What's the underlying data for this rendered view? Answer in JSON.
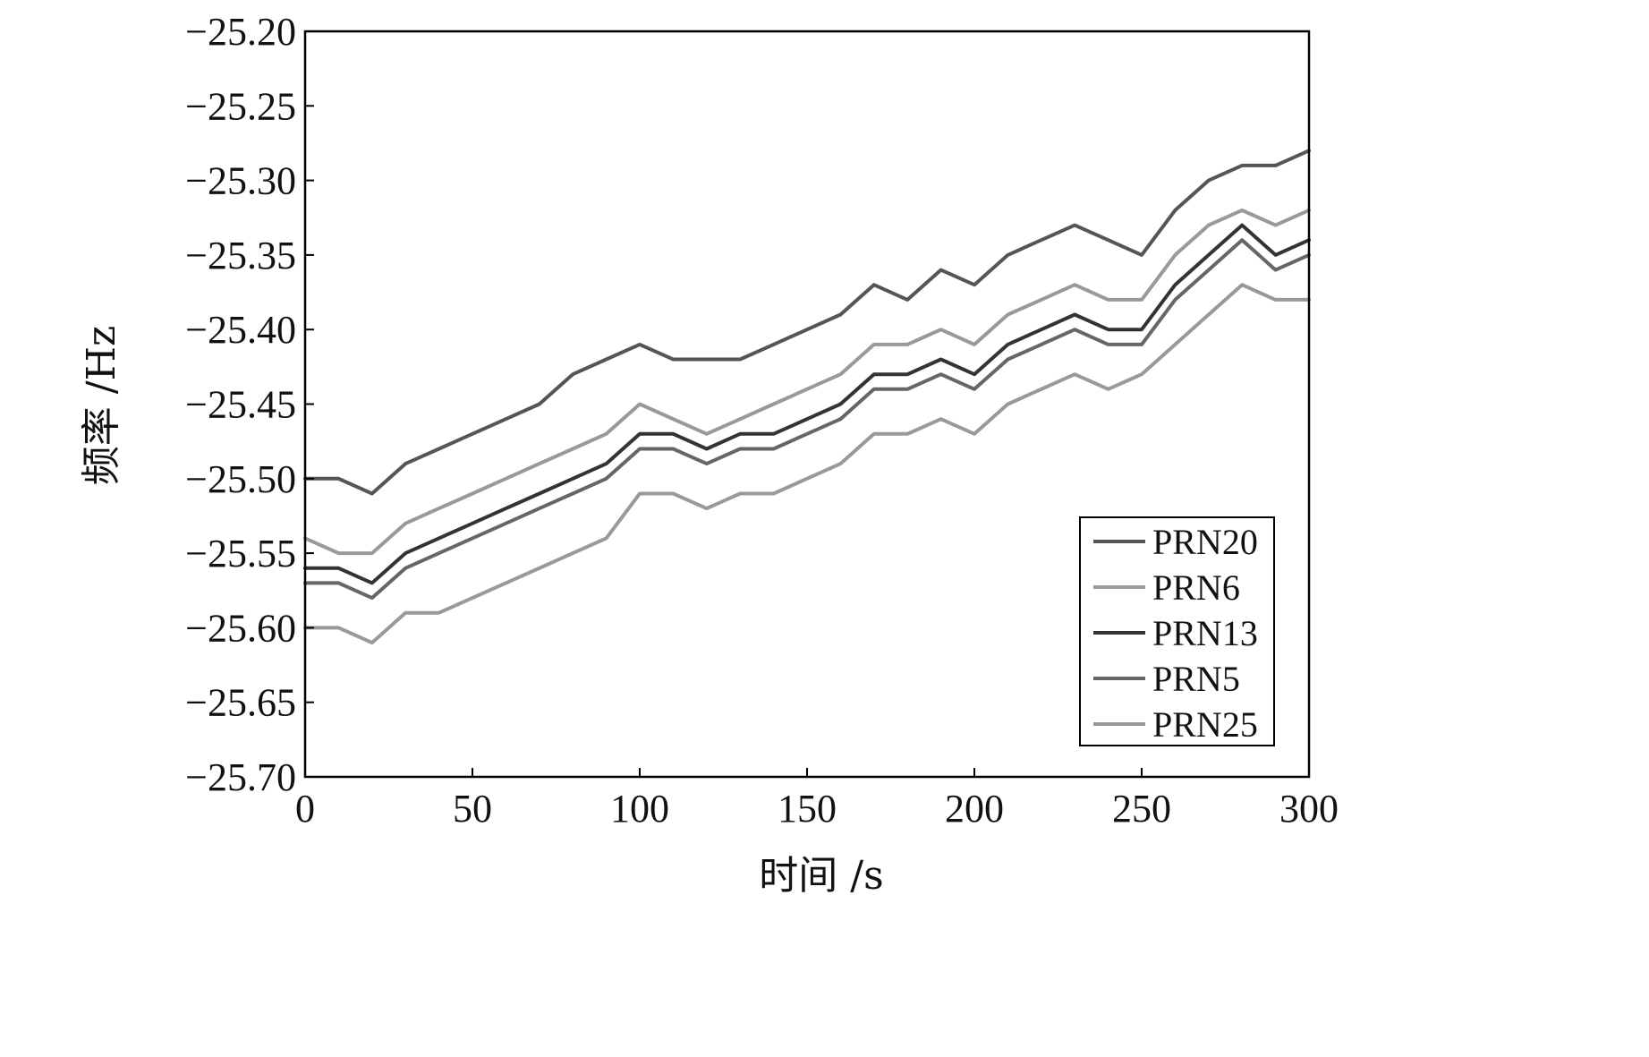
{
  "chart_data": {
    "type": "line",
    "xlabel": "时间 /s",
    "ylabel": "频率 /Hz",
    "xlim": [
      0,
      300
    ],
    "ylim": [
      -25.7,
      -25.2
    ],
    "x_ticks": [
      0,
      50,
      100,
      150,
      200,
      250,
      300
    ],
    "x_tick_labels": [
      "0",
      "50",
      "100",
      "150",
      "200",
      "250",
      "300"
    ],
    "y_ticks": [
      -25.2,
      -25.25,
      -25.3,
      -25.35,
      -25.4,
      -25.45,
      -25.5,
      -25.55,
      -25.6,
      -25.65,
      -25.7
    ],
    "y_tick_labels": [
      "−25.20",
      "−25.25",
      "−25.30",
      "−25.35",
      "−25.40",
      "−25.45",
      "−25.50",
      "−25.55",
      "−25.60",
      "−25.65",
      "−25.70"
    ],
    "grid": false,
    "legend_position": "bottom-right",
    "x": [
      0,
      10,
      20,
      30,
      40,
      50,
      60,
      70,
      80,
      90,
      100,
      110,
      120,
      130,
      140,
      150,
      160,
      170,
      180,
      190,
      200,
      210,
      220,
      230,
      240,
      250,
      260,
      270,
      280,
      290,
      300
    ],
    "series": [
      {
        "name": "PRN20",
        "color": "#555555",
        "values": [
          -25.5,
          -25.5,
          -25.51,
          -25.49,
          -25.48,
          -25.47,
          -25.46,
          -25.45,
          -25.43,
          -25.42,
          -25.41,
          -25.42,
          -25.42,
          -25.42,
          -25.41,
          -25.4,
          -25.39,
          -25.37,
          -25.38,
          -25.36,
          -25.37,
          -25.35,
          -25.34,
          -25.33,
          -25.34,
          -25.35,
          -25.32,
          -25.3,
          -25.29,
          -25.29,
          -25.28
        ]
      },
      {
        "name": "PRN6",
        "color": "#999999",
        "values": [
          -25.54,
          -25.55,
          -25.55,
          -25.53,
          -25.52,
          -25.51,
          -25.5,
          -25.49,
          -25.48,
          -25.47,
          -25.45,
          -25.46,
          -25.47,
          -25.46,
          -25.45,
          -25.44,
          -25.43,
          -25.41,
          -25.41,
          -25.4,
          -25.41,
          -25.39,
          -25.38,
          -25.37,
          -25.38,
          -25.38,
          -25.35,
          -25.33,
          -25.32,
          -25.33,
          -25.32
        ]
      },
      {
        "name": "PRN13",
        "color": "#333333",
        "values": [
          -25.56,
          -25.56,
          -25.57,
          -25.55,
          -25.54,
          -25.53,
          -25.52,
          -25.51,
          -25.5,
          -25.49,
          -25.47,
          -25.47,
          -25.48,
          -25.47,
          -25.47,
          -25.46,
          -25.45,
          -25.43,
          -25.43,
          -25.42,
          -25.43,
          -25.41,
          -25.4,
          -25.39,
          -25.4,
          -25.4,
          -25.37,
          -25.35,
          -25.33,
          -25.35,
          -25.34
        ]
      },
      {
        "name": "PRN5",
        "color": "#666666",
        "values": [
          -25.57,
          -25.57,
          -25.58,
          -25.56,
          -25.55,
          -25.54,
          -25.53,
          -25.52,
          -25.51,
          -25.5,
          -25.48,
          -25.48,
          -25.49,
          -25.48,
          -25.48,
          -25.47,
          -25.46,
          -25.44,
          -25.44,
          -25.43,
          -25.44,
          -25.42,
          -25.41,
          -25.4,
          -25.41,
          -25.41,
          -25.38,
          -25.36,
          -25.34,
          -25.36,
          -25.35
        ]
      },
      {
        "name": "PRN25",
        "color": "#999999",
        "values": [
          -25.6,
          -25.6,
          -25.61,
          -25.59,
          -25.59,
          -25.58,
          -25.57,
          -25.56,
          -25.55,
          -25.54,
          -25.51,
          -25.51,
          -25.52,
          -25.51,
          -25.51,
          -25.5,
          -25.49,
          -25.47,
          -25.47,
          -25.46,
          -25.47,
          -25.45,
          -25.44,
          -25.43,
          -25.44,
          -25.43,
          -25.41,
          -25.39,
          -25.37,
          -25.38,
          -25.38
        ]
      }
    ]
  }
}
